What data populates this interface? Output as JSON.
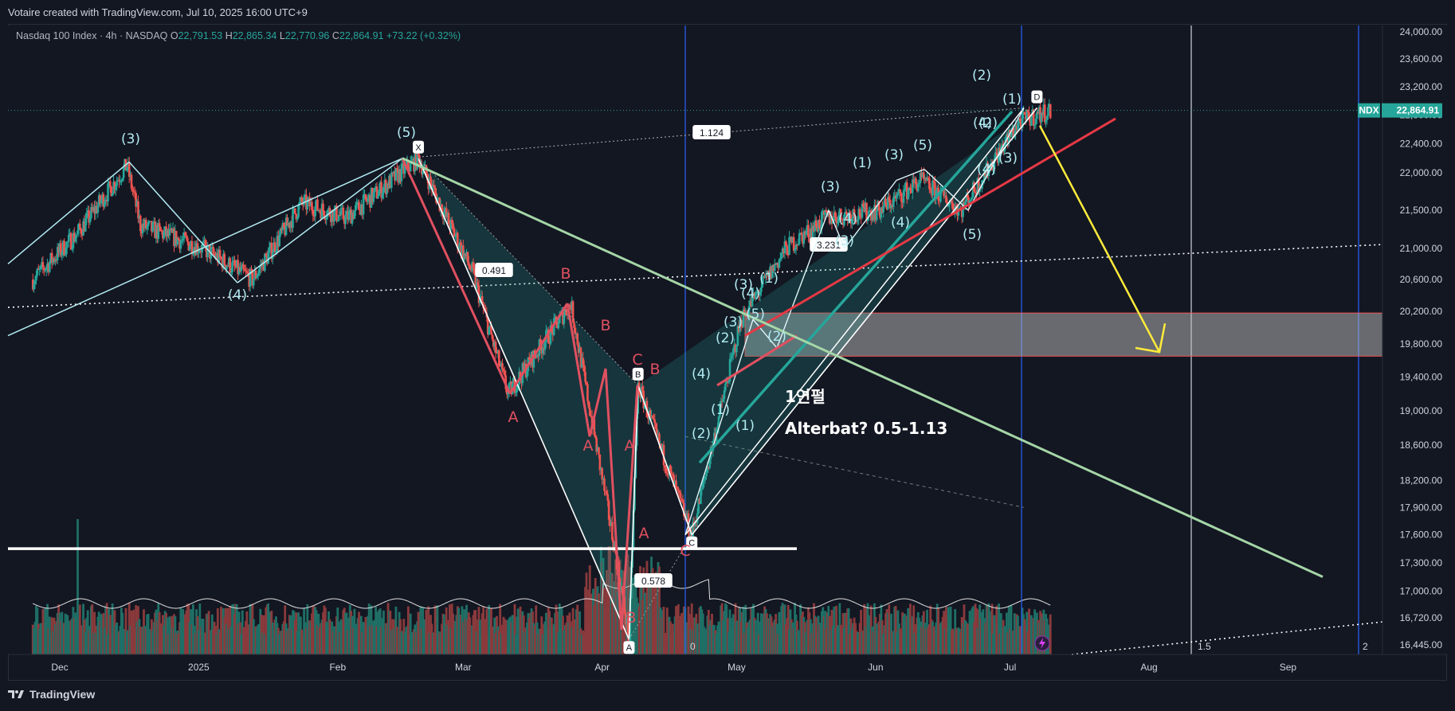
{
  "header": {
    "credit": "Votaire created with TradingView.com, Jul 10, 2025 16:00 UTC+9"
  },
  "legend": {
    "symbol": "Nasdaq 100 Index · 4h · NASDAQ",
    "o_label": "O",
    "o": "22,791.53",
    "h_label": "H",
    "h": "22,865.34",
    "l_label": "L",
    "l": "22,770.96",
    "c_label": "C",
    "c": "22,864.91",
    "change": "+73.22 (+0.32%)"
  },
  "price_tag": {
    "ticker": "NDX",
    "price": "22,864.91"
  },
  "footer": {
    "logo_text": "TradingView"
  },
  "colors": {
    "bg": "#131722",
    "up": "#26a69a",
    "down": "#ef5350",
    "teal_line": "#b2ebf2",
    "red_wave": "#e05060",
    "yellow": "#ffeb3b",
    "green_trend": "#a5d6a7",
    "blue_vline": "#2962ff"
  },
  "chart_data": {
    "type": "candlestick",
    "title": "Nasdaq 100 Index · 4h · NASDAQ",
    "ylim": [
      16300,
      24100
    ],
    "y_scale": "log",
    "y_ticks": [
      "24,000.00",
      "23,600.00",
      "23,200.00",
      "22,800.00",
      "22,400.00",
      "22,000.00",
      "21,500.00",
      "21,000.00",
      "20,600.00",
      "20,200.00",
      "19,800.00",
      "19,400.00",
      "19,000.00",
      "18,600.00",
      "18,200.00",
      "17,900.00",
      "17,600.00",
      "17,300.00",
      "17,000.00",
      "16,720.00",
      "16,445.00"
    ],
    "x_ticks": [
      "Dec",
      "2025",
      "Feb",
      "Mar",
      "Apr",
      "May",
      "Jun",
      "Jul",
      "Aug",
      "Sep"
    ],
    "fib_time_labels": [
      "0",
      "1.5",
      "2"
    ],
    "harmonic_pattern": {
      "points": [
        {
          "label": "X",
          "date": "2025-02-19",
          "value": 22200
        },
        {
          "label": "A",
          "date": "2025-04-07",
          "value": 16500
        },
        {
          "label": "B",
          "date": "2025-04-09",
          "value": 19300
        },
        {
          "label": "C",
          "date": "2025-04-21",
          "value": 17600
        },
        {
          "label": "D",
          "date": "2025-07-07",
          "value": 22900
        }
      ],
      "ratios": [
        "0.491",
        "0.578",
        "1.124",
        "3.231"
      ]
    },
    "wave_labels_teal": [
      "(3)",
      "(5)",
      "(4)",
      "(3)",
      "(5)",
      "(3)",
      "(4)",
      "(1)",
      "(2)",
      "(3)",
      "(4)",
      "(1)",
      "(2)",
      "(3)",
      "(4)",
      "(5)",
      "(1)",
      "(2)",
      "(4)",
      "(3)",
      "(1)",
      "(2)",
      "(3)",
      "(4)",
      "(5)",
      "(1)",
      "(2)",
      "(4)"
    ],
    "wave_labels_red": [
      "A",
      "B",
      "B",
      "A",
      "A",
      "C",
      "B",
      "A",
      "C",
      "B"
    ],
    "annotations": [
      "1연펄",
      "Alterbat? 0.5-1.13"
    ],
    "target_zone": {
      "low": 19650,
      "high": 20180
    },
    "series": [
      {
        "name": "NDX 4h",
        "values": [
          {
            "date": "2024-11-25",
            "value": 20600
          },
          {
            "date": "2024-12-05",
            "value": 21200
          },
          {
            "date": "2024-12-16",
            "value": 22100
          },
          {
            "date": "2024-12-19",
            "value": 21300
          },
          {
            "date": "2025-01-02",
            "value": 21000
          },
          {
            "date": "2025-01-13",
            "value": 20600
          },
          {
            "date": "2025-01-24",
            "value": 21600
          },
          {
            "date": "2025-02-03",
            "value": 21400
          },
          {
            "date": "2025-02-19",
            "value": 22200
          },
          {
            "date": "2025-03-03",
            "value": 20700
          },
          {
            "date": "2025-03-11",
            "value": 19200
          },
          {
            "date": "2025-03-25",
            "value": 20300
          },
          {
            "date": "2025-04-04",
            "value": 17400
          },
          {
            "date": "2025-04-07",
            "value": 16500
          },
          {
            "date": "2025-04-09",
            "value": 19300
          },
          {
            "date": "2025-04-21",
            "value": 17600
          },
          {
            "date": "2025-05-02",
            "value": 20100
          },
          {
            "date": "2025-05-12",
            "value": 21000
          },
          {
            "date": "2025-05-21",
            "value": 21400
          },
          {
            "date": "2025-06-02",
            "value": 21500
          },
          {
            "date": "2025-06-11",
            "value": 21900
          },
          {
            "date": "2025-06-20",
            "value": 21500
          },
          {
            "date": "2025-07-03",
            "value": 22700
          },
          {
            "date": "2025-07-10",
            "value": 22864.91
          }
        ]
      }
    ]
  }
}
